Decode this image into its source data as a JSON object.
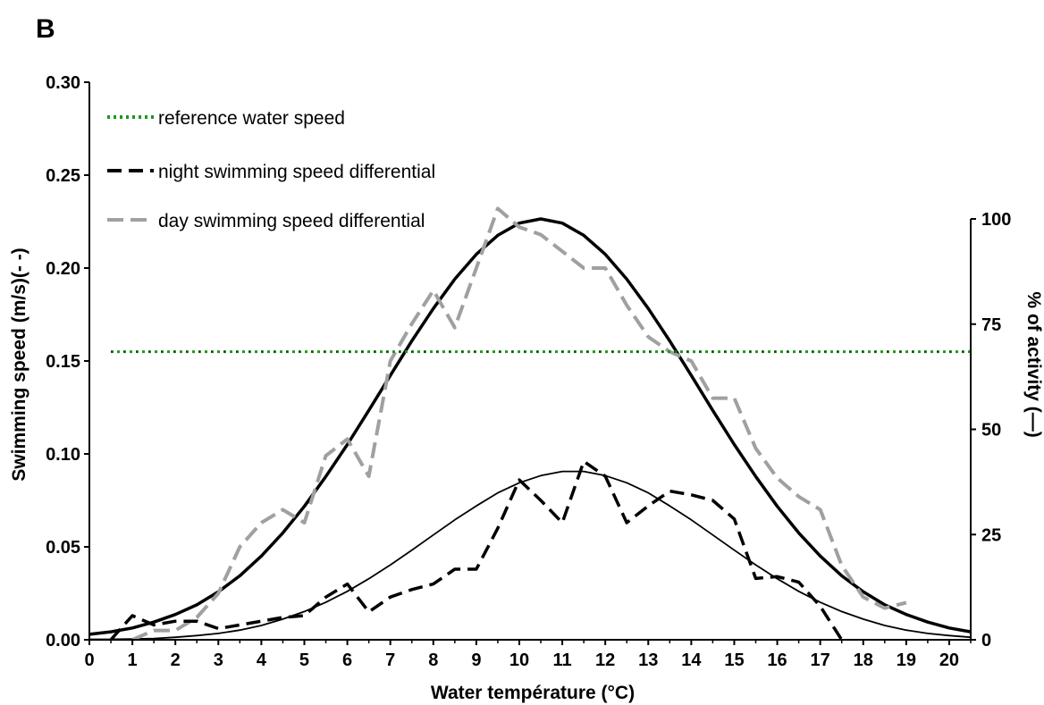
{
  "panel_label": "B",
  "colors": {
    "reference": "#1a9a1a",
    "night": "#000000",
    "day": "#a0a0a0",
    "fit": "#000000"
  },
  "chart_data": {
    "type": "line",
    "xlabel": "Water température (°C)",
    "ylabel_left": "Swimming speed (m/s)(- -)",
    "ylabel_right": "% of activity (—)",
    "xlim": [
      0,
      20.5
    ],
    "ylim_left": [
      0,
      0.3
    ],
    "ylim_right": [
      0,
      100
    ],
    "x_ticks": [
      "0",
      "1",
      "2",
      "3",
      "4",
      "5",
      "6",
      "7",
      "8",
      "9",
      "10",
      "11",
      "12",
      "13",
      "14",
      "15",
      "16",
      "17",
      "18",
      "19",
      "20"
    ],
    "y_ticks_left": [
      "0.00",
      "0.05",
      "0.10",
      "0.15",
      "0.20",
      "0.25",
      "0.30"
    ],
    "y_ticks_right": [
      "0",
      "25",
      "50",
      "75",
      "100"
    ],
    "legend_position": "top-left",
    "legend": [
      {
        "label": "reference water speed",
        "style": "dotted-green"
      },
      {
        "label": "night swimming speed differential",
        "style": "dashed-black"
      },
      {
        "label": "day swimming speed differential",
        "style": "dashed-gray"
      }
    ],
    "series": [
      {
        "name": "reference water speed",
        "axis": "left",
        "x": [
          0.5,
          20.5
        ],
        "y": [
          0.155,
          0.155
        ]
      },
      {
        "name": "night swimming speed differential",
        "axis": "left",
        "x": [
          0.5,
          1.0,
          1.5,
          2.0,
          2.5,
          3.0,
          3.5,
          4.0,
          4.5,
          5.0,
          5.5,
          6.0,
          6.5,
          7.0,
          7.5,
          8.0,
          8.5,
          9.0,
          9.5,
          10.0,
          10.5,
          11.0,
          11.5,
          12.0,
          12.5,
          13.0,
          13.5,
          14.0,
          14.5,
          15.0,
          15.5,
          16.0,
          16.5,
          17.0,
          17.5
        ],
        "y": [
          0.0,
          0.013,
          0.008,
          0.01,
          0.01,
          0.006,
          0.008,
          0.01,
          0.012,
          0.013,
          0.023,
          0.03,
          0.015,
          0.023,
          0.027,
          0.03,
          0.038,
          0.038,
          0.06,
          0.086,
          0.075,
          0.063,
          0.096,
          0.088,
          0.063,
          0.072,
          0.08,
          0.078,
          0.075,
          0.065,
          0.033,
          0.034,
          0.031,
          0.018,
          0.0
        ]
      },
      {
        "name": "day swimming speed differential",
        "axis": "left",
        "x": [
          1.0,
          1.5,
          2.0,
          2.5,
          3.0,
          3.5,
          4.0,
          4.5,
          5.0,
          5.5,
          6.0,
          6.5,
          7.0,
          7.5,
          8.0,
          8.5,
          9.0,
          9.5,
          10.0,
          10.5,
          11.0,
          11.5,
          12.0,
          12.5,
          13.0,
          13.5,
          14.0,
          14.5,
          15.0,
          15.5,
          16.0,
          16.5,
          17.0,
          17.5,
          18.0,
          18.5,
          19.0
        ],
        "y": [
          0.0,
          0.005,
          0.005,
          0.012,
          0.025,
          0.05,
          0.063,
          0.07,
          0.063,
          0.099,
          0.108,
          0.088,
          0.15,
          0.17,
          0.188,
          0.168,
          0.2,
          0.232,
          0.222,
          0.218,
          0.209,
          0.2,
          0.2,
          0.18,
          0.163,
          0.155,
          0.15,
          0.13,
          0.13,
          0.103,
          0.087,
          0.077,
          0.07,
          0.04,
          0.023,
          0.017,
          0.02
        ]
      },
      {
        "name": "day % of activity",
        "axis": "right",
        "x": [
          0,
          0.5,
          1,
          1.5,
          2,
          2.5,
          3,
          3.5,
          4,
          4.5,
          5,
          5.5,
          6,
          6.5,
          7,
          7.5,
          8,
          8.5,
          9,
          9.5,
          10,
          10.5,
          11,
          11.5,
          12,
          12.5,
          13,
          13.5,
          14,
          14.5,
          15,
          15.5,
          16,
          16.5,
          17,
          17.5,
          18,
          18.5,
          19,
          19.5,
          20,
          20.5
        ],
        "y": [
          1.3,
          1.9,
          2.8,
          4.2,
          6.0,
          8.3,
          11.4,
          15.2,
          19.9,
          25.4,
          31.7,
          38.8,
          46.4,
          54.5,
          62.8,
          71.0,
          78.7,
          85.7,
          91.6,
          96.1,
          99.0,
          100.0,
          99.0,
          96.1,
          91.6,
          85.7,
          78.7,
          71.0,
          62.8,
          54.5,
          46.4,
          38.8,
          31.7,
          25.4,
          19.9,
          15.2,
          11.4,
          8.3,
          6.0,
          4.2,
          2.8,
          1.9
        ]
      },
      {
        "name": "night % of activity",
        "axis": "right",
        "x": [
          0,
          0.5,
          1,
          1.5,
          2,
          2.5,
          3,
          3.5,
          4,
          4.5,
          5,
          5.5,
          6,
          6.5,
          7,
          7.5,
          8,
          8.5,
          9,
          9.5,
          10,
          10.5,
          11,
          11.5,
          12,
          12.5,
          13,
          13.5,
          14,
          14.5,
          15,
          15.5,
          16,
          16.5,
          17,
          17.5,
          18,
          18.5,
          19,
          19.5,
          20,
          20.5
        ],
        "y": [
          0.1,
          0.1,
          0.2,
          0.3,
          0.6,
          1.0,
          1.5,
          2.3,
          3.4,
          4.9,
          6.7,
          8.9,
          11.5,
          14.5,
          17.8,
          21.3,
          24.9,
          28.5,
          31.8,
          34.9,
          37.3,
          39.0,
          40.0,
          40.0,
          39.0,
          37.3,
          34.9,
          31.8,
          28.5,
          24.9,
          21.3,
          17.8,
          14.5,
          11.5,
          8.9,
          6.7,
          4.9,
          3.4,
          2.3,
          1.5,
          1.0,
          0.6
        ]
      }
    ]
  }
}
